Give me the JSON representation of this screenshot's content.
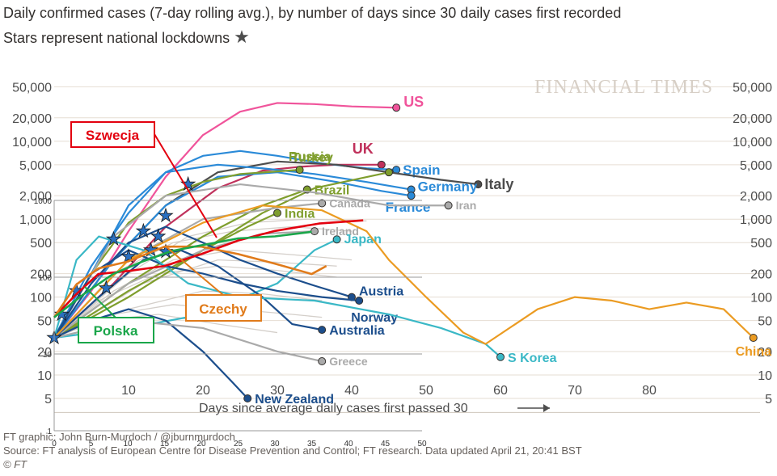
{
  "title": "Daily confirmed cases (7-day rolling avg.), by number of days since 30 daily cases first recorded",
  "subtitle": "Stars represent national lockdowns",
  "watermark": "FINANCIAL TIMES",
  "footer": {
    "credit": "FT graphic: John Burn-Murdoch / @jburnmurdoch",
    "source": "Source: FT analysis of European Centre for Disease Prevention and Control; FT research. Data updated April 21, 20:41 BST",
    "copyright": "© FT"
  },
  "annotations": [
    {
      "label": "Szwecja",
      "color": "#e3000f"
    },
    {
      "label": "Czechy",
      "color": "#e07b1b"
    },
    {
      "label": "Polska",
      "color": "#1aa64a"
    }
  ],
  "chart_data": {
    "type": "line",
    "xlabel": "Days since average daily cases first passed 30",
    "x_ticks": [
      10,
      20,
      30,
      40,
      50,
      60,
      70,
      80
    ],
    "xlim": [
      0,
      95
    ],
    "y_scale": "log",
    "ylim": [
      3,
      70000
    ],
    "y_ticks": [
      5,
      10,
      20,
      50,
      100,
      200,
      500,
      1000,
      2000,
      5000,
      10000,
      20000,
      50000
    ],
    "y_tick_labels": [
      "5",
      "10",
      "20",
      "50",
      "100",
      "200",
      "500",
      "1,000",
      "2,000",
      "5,000",
      "10,000",
      "20,000",
      "50,000"
    ],
    "series": [
      {
        "name": "US",
        "color": "#f0549b",
        "x": [
          0,
          5,
          10,
          15,
          20,
          25,
          30,
          35,
          40,
          46
        ],
        "y": [
          30,
          120,
          700,
          3500,
          12000,
          24000,
          31000,
          30000,
          28000,
          27000
        ]
      },
      {
        "name": "UK",
        "color": "#c0315b",
        "x": [
          0,
          8,
          15,
          22,
          28,
          33,
          38,
          44
        ],
        "y": [
          30,
          150,
          800,
          2500,
          4200,
          4700,
          5000,
          5000
        ]
      },
      {
        "name": "Spain",
        "color": "#2a8ad8",
        "x": [
          0,
          5,
          10,
          15,
          20,
          25,
          30,
          36,
          42,
          46
        ],
        "y": [
          30,
          250,
          1200,
          4000,
          6500,
          7500,
          6500,
          5200,
          4500,
          4300
        ]
      },
      {
        "name": "Italy",
        "color": "#4d4d4d",
        "x": [
          0,
          8,
          15,
          22,
          30,
          38,
          45,
          52,
          57
        ],
        "y": [
          30,
          300,
          1500,
          4000,
          5500,
          5000,
          4000,
          3200,
          2800
        ]
      },
      {
        "name": "Germany",
        "color": "#2a8ad8",
        "x": [
          0,
          5,
          10,
          15,
          22,
          28,
          35,
          42,
          48
        ],
        "y": [
          30,
          200,
          1500,
          4000,
          5000,
          4500,
          3800,
          3000,
          2400
        ]
      },
      {
        "name": "France",
        "color": "#2a8ad8",
        "x": [
          0,
          8,
          15,
          22,
          30,
          38,
          44,
          48
        ],
        "y": [
          30,
          300,
          1500,
          3500,
          4000,
          3000,
          2300,
          2000
        ]
      },
      {
        "name": "Turkey",
        "color": "#7f9e2d",
        "x": [
          0,
          5,
          10,
          15,
          20,
          25,
          30,
          33
        ],
        "y": [
          30,
          200,
          900,
          2000,
          3000,
          3800,
          4100,
          4300
        ]
      },
      {
        "name": "Russia",
        "color": "#7f9e2d",
        "x": [
          0,
          10,
          20,
          28,
          35,
          45
        ],
        "y": [
          30,
          100,
          400,
          1200,
          2500,
          4000
        ]
      },
      {
        "name": "Brazil",
        "color": "#7f9e2d",
        "x": [
          0,
          10,
          20,
          28,
          34
        ],
        "y": [
          30,
          150,
          600,
          1500,
          2400
        ]
      },
      {
        "name": "India",
        "color": "#7f9e2d",
        "x": [
          0,
          10,
          20,
          26,
          30
        ],
        "y": [
          30,
          120,
          400,
          800,
          1200
        ]
      },
      {
        "name": "Canada",
        "color": "#aaaaaa",
        "x": [
          0,
          10,
          20,
          30,
          36
        ],
        "y": [
          30,
          300,
          1000,
          1400,
          1600
        ]
      },
      {
        "name": "Iran",
        "color": "#aaaaaa",
        "x": [
          0,
          8,
          15,
          25,
          35,
          45,
          53
        ],
        "y": [
          30,
          600,
          2000,
          2800,
          2200,
          1500,
          1500
        ]
      },
      {
        "name": "Ireland",
        "color": "#aaaaaa",
        "x": [
          0,
          10,
          20,
          28,
          35
        ],
        "y": [
          30,
          150,
          400,
          650,
          700
        ]
      },
      {
        "name": "Japan",
        "color": "#3ab8c6",
        "x": [
          0,
          10,
          20,
          30,
          35,
          38
        ],
        "y": [
          30,
          40,
          60,
          150,
          400,
          550
        ]
      },
      {
        "name": "Austria",
        "color": "#1c4e8c",
        "x": [
          0,
          5,
          10,
          15,
          20,
          25,
          30,
          35,
          40
        ],
        "y": [
          30,
          150,
          500,
          800,
          500,
          300,
          200,
          140,
          100
        ]
      },
      {
        "name": "Norway",
        "color": "#1c4e8c",
        "x": [
          0,
          5,
          10,
          15,
          20,
          25,
          30,
          36,
          41
        ],
        "y": [
          30,
          200,
          400,
          250,
          200,
          150,
          120,
          100,
          90
        ]
      },
      {
        "name": "Australia",
        "color": "#1c4e8c",
        "x": [
          0,
          6,
          12,
          17,
          22,
          28,
          32,
          36
        ],
        "y": [
          30,
          100,
          300,
          400,
          250,
          100,
          45,
          38
        ]
      },
      {
        "name": "New Zealand",
        "color": "#1c4e8c",
        "x": [
          0,
          5,
          10,
          15,
          20,
          24,
          26
        ],
        "y": [
          30,
          50,
          70,
          50,
          20,
          8,
          5
        ]
      },
      {
        "name": "S Korea",
        "color": "#3ab8c6",
        "x": [
          0,
          3,
          6,
          12,
          18,
          25,
          35,
          45,
          52,
          58,
          60
        ],
        "y": [
          30,
          300,
          600,
          400,
          150,
          100,
          90,
          60,
          40,
          25,
          17
        ]
      },
      {
        "name": "China",
        "color": "#eb9b22",
        "x": [
          0,
          10,
          20,
          28,
          36,
          42,
          45,
          50,
          55,
          58,
          62,
          65,
          70,
          75,
          80,
          85,
          90,
          94
        ],
        "y": [
          30,
          300,
          900,
          1500,
          1300,
          700,
          300,
          100,
          35,
          25,
          45,
          70,
          100,
          90,
          70,
          85,
          70,
          30
        ]
      },
      {
        "name": "Greece",
        "color": "#aaaaaa",
        "x": [
          0,
          10,
          20,
          30,
          36
        ],
        "y": [
          30,
          50,
          40,
          20,
          15
        ]
      }
    ],
    "label_colors": {
      "green": "#7f9e2d",
      "navy": "#1c4e8c",
      "blue": "#2a8ad8",
      "cyan": "#3ab8c6",
      "orange": "#eb9b22",
      "grey": "#aaaaaa"
    },
    "inset": {
      "type": "line",
      "xlim": [
        0,
        50
      ],
      "x_ticks": [
        0,
        5,
        10,
        15,
        20,
        25,
        30,
        35,
        40,
        45,
        50
      ],
      "y_scale": "log",
      "ylim": [
        1,
        1000
      ],
      "y_ticks": [
        1,
        10,
        100,
        1000
      ],
      "series": [
        {
          "name": "Szwecja",
          "color": "#e3000f",
          "x": [
            0,
            3,
            6,
            10,
            15,
            20,
            25,
            30,
            36,
            42
          ],
          "y": [
            30,
            60,
            110,
            120,
            140,
            200,
            300,
            400,
            500,
            550
          ]
        },
        {
          "name": "Czechy",
          "color": "#e07b1b",
          "x": [
            0,
            3,
            6,
            10,
            15,
            20,
            25,
            30,
            35,
            37
          ],
          "y": [
            30,
            80,
            130,
            160,
            250,
            250,
            200,
            150,
            110,
            140
          ]
        },
        {
          "name": "Polska",
          "color": "#1aa64a",
          "x": [
            0,
            4,
            8,
            12,
            16,
            20,
            25,
            30,
            35
          ],
          "y": [
            30,
            60,
            110,
            160,
            220,
            260,
            320,
            340,
            390
          ]
        }
      ]
    }
  }
}
